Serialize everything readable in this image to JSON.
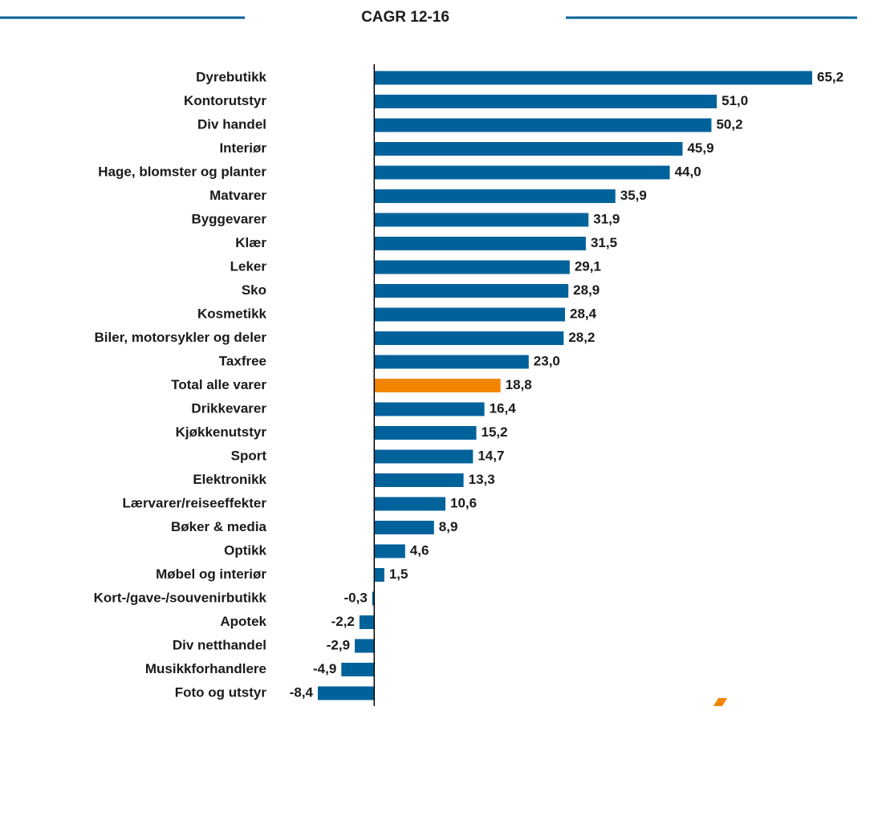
{
  "chart_data": {
    "type": "bar",
    "orientation": "horizontal",
    "title": "CAGR 12-16",
    "categories": [
      "Dyrebutikk",
      "Kontorutstyr",
      "Div handel",
      "Interiør",
      "Hage, blomster og planter",
      "Matvarer",
      "Byggevarer",
      "Klær",
      "Leker",
      "Sko",
      "Kosmetikk",
      "Biler, motorsykler og deler",
      "Taxfree",
      "Total alle varer",
      "Drikkevarer",
      "Kjøkkenutstyr",
      "Sport",
      "Elektronikk",
      "Lærvarer/reiseeffekter",
      "Bøker & media",
      "Optikk",
      "Møbel og interiør",
      "Kort-/gave-/souvenirbutikk",
      "Apotek",
      "Div netthandel",
      "Musikkforhandlere",
      "Foto og utstyr"
    ],
    "values": [
      65.2,
      51.0,
      50.2,
      45.9,
      44.0,
      35.9,
      31.9,
      31.5,
      29.1,
      28.9,
      28.4,
      28.2,
      23.0,
      18.8,
      16.4,
      15.2,
      14.7,
      13.3,
      10.6,
      8.9,
      4.6,
      1.5,
      -0.3,
      -2.2,
      -2.9,
      -4.9,
      -8.4
    ],
    "value_labels": [
      "65,2",
      "51,0",
      "50,2",
      "45,9",
      "44,0",
      "35,9",
      "31,9",
      "31,5",
      "29,1",
      "28,9",
      "28,4",
      "28,2",
      "23,0",
      "18,8",
      "16,4",
      "15,2",
      "14,7",
      "13,3",
      "10,6",
      "8,9",
      "4,6",
      "1,5",
      "-0,3",
      "-2,2",
      "-2,9",
      "-4,9",
      "-8,4"
    ],
    "colors": [
      "#00629b",
      "#00629b",
      "#00629b",
      "#00629b",
      "#00629b",
      "#00629b",
      "#00629b",
      "#00629b",
      "#00629b",
      "#00629b",
      "#00629b",
      "#00629b",
      "#00629b",
      "#f28500",
      "#00629b",
      "#00629b",
      "#00629b",
      "#00629b",
      "#00629b",
      "#00629b",
      "#00629b",
      "#00629b",
      "#00629b",
      "#00629b",
      "#00629b",
      "#00629b",
      "#00629b"
    ]
  }
}
